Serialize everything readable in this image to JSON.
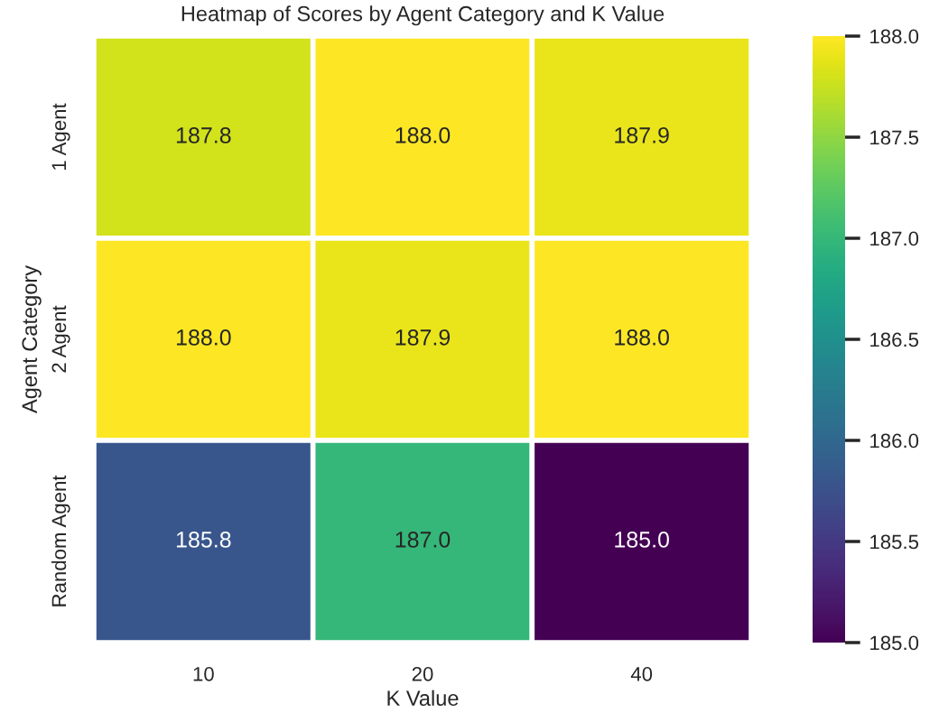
{
  "chart_data": {
    "type": "heatmap",
    "title": "Heatmap of Scores by Agent Category and K Value",
    "xlabel": "K Value",
    "ylabel": "Agent Category",
    "categories": [
      "10",
      "20",
      "40"
    ],
    "y_categories": [
      "1 Agent",
      "2 Agent",
      "Random Agent"
    ],
    "cells": [
      [
        187.8,
        188.0,
        187.9
      ],
      [
        188.0,
        187.9,
        188.0
      ],
      [
        185.8,
        187.0,
        185.0
      ]
    ],
    "cell_labels": [
      [
        "187.8",
        "188.0",
        "187.9"
      ],
      [
        "188.0",
        "187.9",
        "188.0"
      ],
      [
        "185.8",
        "187.0",
        "185.0"
      ]
    ],
    "clim": [
      185.0,
      188.0
    ],
    "cticks": [
      {
        "value": 185.0,
        "label": "185.0"
      },
      {
        "value": 185.5,
        "label": "185.5"
      },
      {
        "value": 186.0,
        "label": "186.0"
      },
      {
        "value": 186.5,
        "label": "186.5"
      },
      {
        "value": 187.0,
        "label": "187.0"
      },
      {
        "value": 187.5,
        "label": "187.5"
      },
      {
        "value": 188.0,
        "label": "188.0"
      }
    ]
  }
}
